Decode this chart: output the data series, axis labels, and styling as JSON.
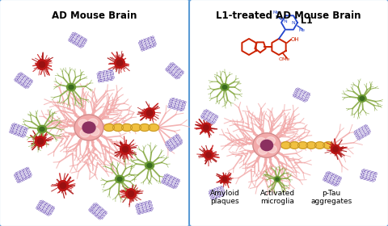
{
  "title_left": "AD Mouse Brain",
  "title_right": "L1-treated AD Mouse Brain",
  "legend_labels": [
    "Amyloid\nplaques",
    "Activated\nmicroglia",
    "p-Tau\naggregates"
  ],
  "compound_label": "L1",
  "bg_color": "#ffffff",
  "border_color": "#5b9bd5",
  "neuron_body_color": "#f2aaaa",
  "neuron_nucleus_color": "#8b3060",
  "neuron_axon_color": "#f0c040",
  "amyloid_color": "#cc2222",
  "microglia_color": "#88aa44",
  "tau_color": "#5533aa",
  "title_fontsize": 8.5,
  "legend_fontsize": 6.5,
  "figsize": [
    4.8,
    2.8
  ],
  "dpi": 100
}
